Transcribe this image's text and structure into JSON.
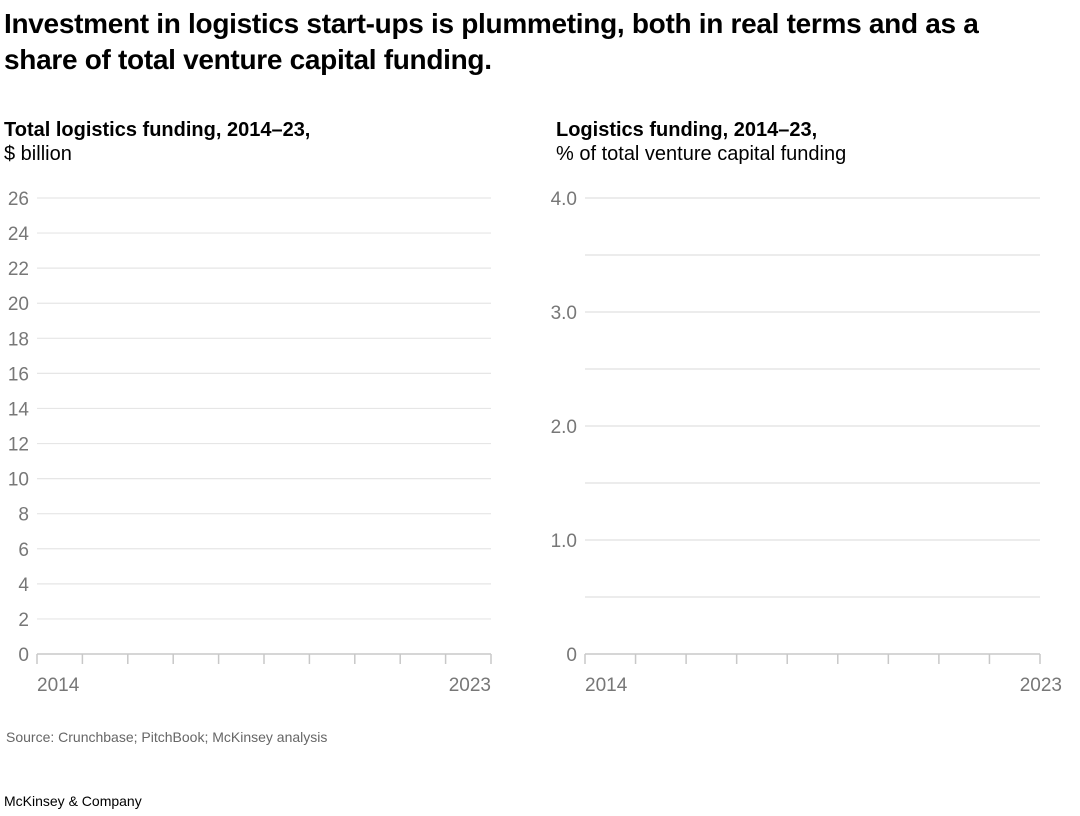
{
  "title": "Investment in logistics start-ups is plummeting, both in real terms and as a share of total venture capital funding.",
  "chart_data": [
    {
      "type": "line",
      "title": "Total logistics funding, 2014–23,",
      "subtitle": "$ billion",
      "ylim": [
        0,
        26
      ],
      "yticks": [
        0,
        2,
        4,
        6,
        8,
        10,
        12,
        14,
        16,
        18,
        20,
        22,
        24,
        26
      ],
      "ytick_labels": [
        "0",
        "2",
        "4",
        "6",
        "8",
        "10",
        "12",
        "14",
        "16",
        "18",
        "20",
        "22",
        "24",
        "26"
      ],
      "xlim": [
        2014,
        2023
      ],
      "xtick_labels": [
        "2014",
        "2023"
      ],
      "grid": true,
      "gridline_color": "#e6e6e6",
      "series": []
    },
    {
      "type": "line",
      "title": "Logistics funding, 2014–23,",
      "subtitle": "% of total venture capital funding",
      "ylim": [
        0,
        4.0
      ],
      "gridlines": [
        0,
        0.5,
        1.0,
        1.5,
        2.0,
        2.5,
        3.0,
        3.5,
        4.0
      ],
      "yticks": [
        0,
        1.0,
        2.0,
        3.0,
        4.0
      ],
      "ytick_labels": [
        "0",
        "1.0",
        "2.0",
        "3.0",
        "4.0"
      ],
      "xlim": [
        2014,
        2023
      ],
      "xtick_labels": [
        "2014",
        "2023"
      ],
      "grid": true,
      "gridline_color": "#e0e0e0",
      "series": []
    }
  ],
  "source": "Source: Crunchbase; PitchBook; McKinsey analysis",
  "brand": "McKinsey & Company"
}
